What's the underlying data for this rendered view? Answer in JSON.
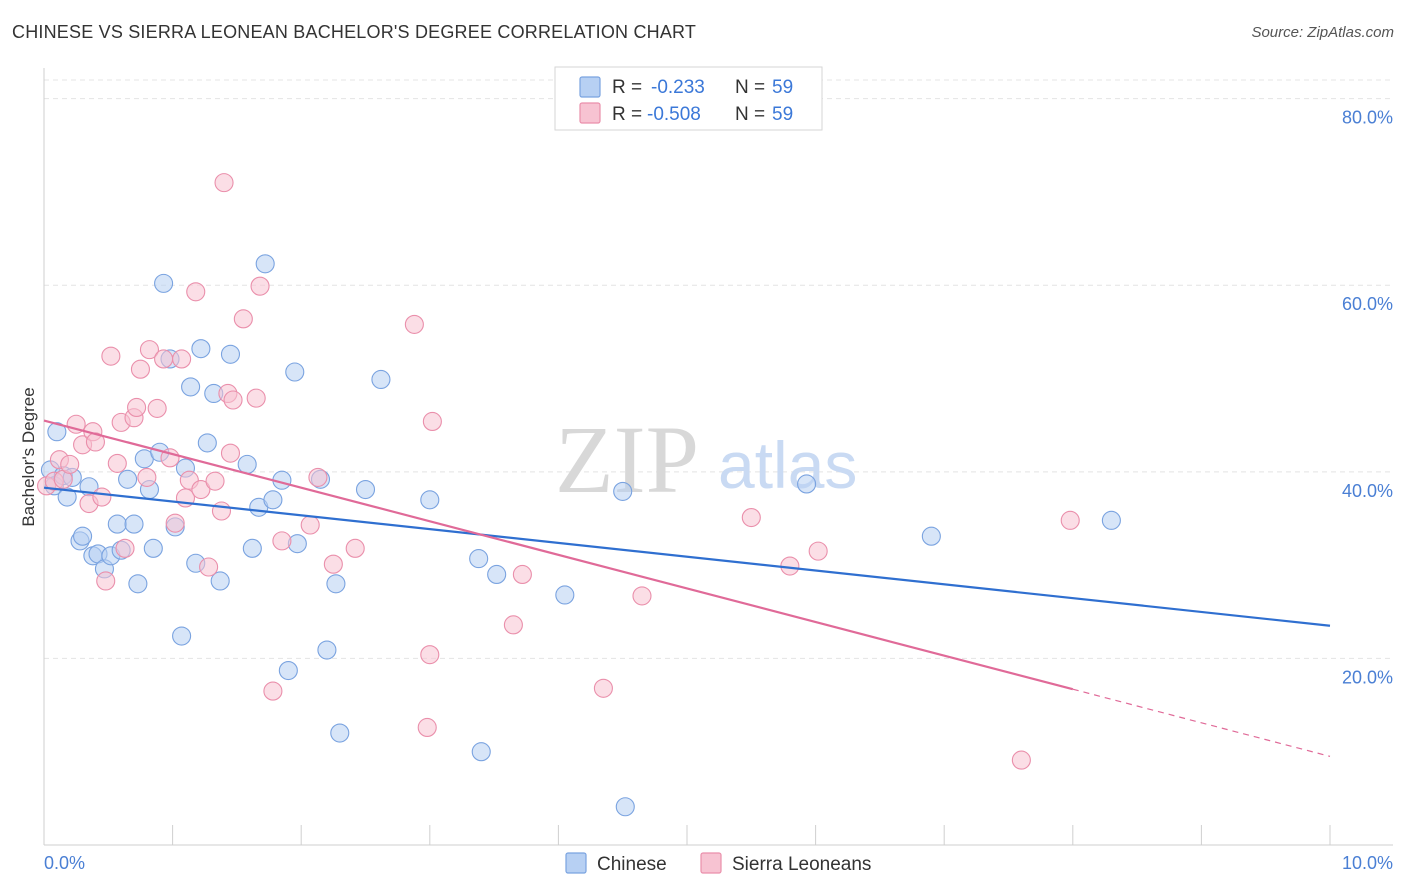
{
  "title": "CHINESE VS SIERRA LEONEAN BACHELOR'S DEGREE CORRELATION CHART",
  "source": "Source: ZipAtlas.com",
  "watermark": {
    "zip": "ZIP",
    "atlas": "atlas"
  },
  "colors": {
    "chinese_fill": "#b7d0f3",
    "chinese_stroke": "#7aa3e0",
    "chinese_line": "#2f6fd0",
    "sierra_fill": "#f7c3d2",
    "sierra_stroke": "#ea8fab",
    "sierra_line": "#e06a98",
    "axis_text": "#4a7fd4",
    "grid": "#e4e4e4"
  },
  "legend": {
    "r_label": "R =",
    "n_label": "N =",
    "rows": [
      {
        "series": "Chinese",
        "r": "-0.233",
        "n": "59"
      },
      {
        "series": "Sierra Leoneans",
        "r": "-0.508",
        "n": "59"
      }
    ]
  },
  "bottom_legend": [
    "Chinese",
    "Sierra Leoneans"
  ],
  "chart_data": {
    "type": "scatter",
    "title": "CHINESE VS SIERRA LEONEAN BACHELOR'S DEGREE CORRELATION CHART",
    "xlabel": "",
    "ylabel": "Bachelor's Degree",
    "xlim": [
      0,
      10
    ],
    "ylim": [
      0,
      82
    ],
    "x_tick_labels": [
      {
        "value": 0,
        "label": "0.0%"
      },
      {
        "value": 10,
        "label": "10.0%"
      }
    ],
    "y_tick_labels": [
      {
        "value": 20,
        "label": "20.0%"
      },
      {
        "value": 40,
        "label": "40.0%"
      },
      {
        "value": 60,
        "label": "60.0%"
      },
      {
        "value": 80,
        "label": "80.0%"
      }
    ],
    "grid": true,
    "series": [
      {
        "name": "Chinese",
        "r": -0.233,
        "n": 59,
        "trend": {
          "x": [
            0,
            10
          ],
          "y": [
            38.3,
            23.5
          ],
          "solid_until": 10
        },
        "points": [
          [
            0.05,
            40.2
          ],
          [
            0.08,
            38.5
          ],
          [
            0.1,
            44.3
          ],
          [
            0.15,
            39.6
          ],
          [
            0.18,
            37.3
          ],
          [
            0.22,
            39.4
          ],
          [
            0.28,
            32.6
          ],
          [
            0.3,
            33.1
          ],
          [
            0.35,
            38.4
          ],
          [
            0.38,
            31.0
          ],
          [
            0.42,
            31.2
          ],
          [
            0.47,
            29.6
          ],
          [
            0.52,
            31.0
          ],
          [
            0.57,
            34.4
          ],
          [
            0.6,
            31.6
          ],
          [
            0.65,
            39.2
          ],
          [
            0.7,
            34.4
          ],
          [
            0.73,
            28.0
          ],
          [
            0.78,
            41.4
          ],
          [
            0.82,
            38.1
          ],
          [
            0.85,
            31.8
          ],
          [
            0.9,
            42.1
          ],
          [
            0.93,
            60.2
          ],
          [
            0.98,
            52.1
          ],
          [
            1.02,
            34.1
          ],
          [
            1.07,
            22.4
          ],
          [
            1.1,
            40.4
          ],
          [
            1.14,
            49.1
          ],
          [
            1.18,
            30.2
          ],
          [
            1.22,
            53.2
          ],
          [
            1.27,
            43.1
          ],
          [
            1.32,
            48.4
          ],
          [
            1.37,
            28.3
          ],
          [
            1.45,
            52.6
          ],
          [
            1.58,
            40.8
          ],
          [
            1.62,
            31.8
          ],
          [
            1.67,
            36.2
          ],
          [
            1.72,
            62.3
          ],
          [
            1.78,
            37.0
          ],
          [
            1.85,
            39.1
          ],
          [
            1.9,
            18.7
          ],
          [
            1.95,
            50.7
          ],
          [
            1.97,
            32.3
          ],
          [
            2.15,
            39.2
          ],
          [
            2.2,
            20.9
          ],
          [
            2.27,
            28.0
          ],
          [
            2.3,
            12.0
          ],
          [
            2.5,
            38.1
          ],
          [
            2.62,
            49.9
          ],
          [
            3.0,
            37.0
          ],
          [
            3.38,
            30.7
          ],
          [
            3.4,
            10.0
          ],
          [
            3.52,
            29.0
          ],
          [
            4.05,
            26.8
          ],
          [
            4.5,
            37.9
          ],
          [
            4.52,
            4.1
          ],
          [
            5.93,
            38.7
          ],
          [
            6.9,
            33.1
          ],
          [
            8.3,
            34.8
          ]
        ]
      },
      {
        "name": "Sierra Leoneans",
        "r": -0.508,
        "n": 59,
        "trend": {
          "x": [
            0,
            10
          ],
          "y": [
            45.5,
            9.5
          ],
          "solid_until": 8.0
        },
        "points": [
          [
            0.02,
            38.5
          ],
          [
            0.08,
            39.0
          ],
          [
            0.12,
            41.3
          ],
          [
            0.15,
            39.2
          ],
          [
            0.2,
            40.8
          ],
          [
            0.25,
            45.1
          ],
          [
            0.3,
            42.9
          ],
          [
            0.35,
            36.6
          ],
          [
            0.38,
            44.3
          ],
          [
            0.4,
            43.2
          ],
          [
            0.45,
            37.3
          ],
          [
            0.48,
            28.3
          ],
          [
            0.52,
            52.4
          ],
          [
            0.57,
            40.9
          ],
          [
            0.6,
            45.3
          ],
          [
            0.63,
            31.8
          ],
          [
            0.7,
            45.8
          ],
          [
            0.72,
            46.9
          ],
          [
            0.75,
            51.0
          ],
          [
            0.8,
            39.4
          ],
          [
            0.82,
            53.1
          ],
          [
            0.88,
            46.8
          ],
          [
            0.93,
            52.1
          ],
          [
            0.98,
            41.5
          ],
          [
            1.02,
            34.5
          ],
          [
            1.07,
            52.1
          ],
          [
            1.1,
            37.2
          ],
          [
            1.13,
            39.1
          ],
          [
            1.18,
            59.3
          ],
          [
            1.22,
            38.1
          ],
          [
            1.28,
            29.8
          ],
          [
            1.33,
            39.0
          ],
          [
            1.38,
            35.8
          ],
          [
            1.4,
            71.0
          ],
          [
            1.43,
            48.4
          ],
          [
            1.45,
            42.0
          ],
          [
            1.47,
            47.7
          ],
          [
            1.55,
            56.4
          ],
          [
            1.65,
            47.9
          ],
          [
            1.68,
            59.9
          ],
          [
            1.78,
            16.5
          ],
          [
            1.85,
            32.6
          ],
          [
            2.07,
            34.3
          ],
          [
            2.13,
            39.4
          ],
          [
            2.25,
            30.1
          ],
          [
            2.42,
            31.8
          ],
          [
            2.88,
            55.8
          ],
          [
            2.98,
            12.6
          ],
          [
            3.0,
            20.4
          ],
          [
            3.02,
            45.4
          ],
          [
            3.65,
            23.6
          ],
          [
            3.72,
            29.0
          ],
          [
            4.35,
            16.8
          ],
          [
            4.65,
            26.7
          ],
          [
            5.5,
            35.1
          ],
          [
            5.8,
            29.9
          ],
          [
            6.02,
            31.5
          ],
          [
            7.6,
            9.1
          ],
          [
            7.98,
            34.8
          ]
        ]
      }
    ]
  }
}
